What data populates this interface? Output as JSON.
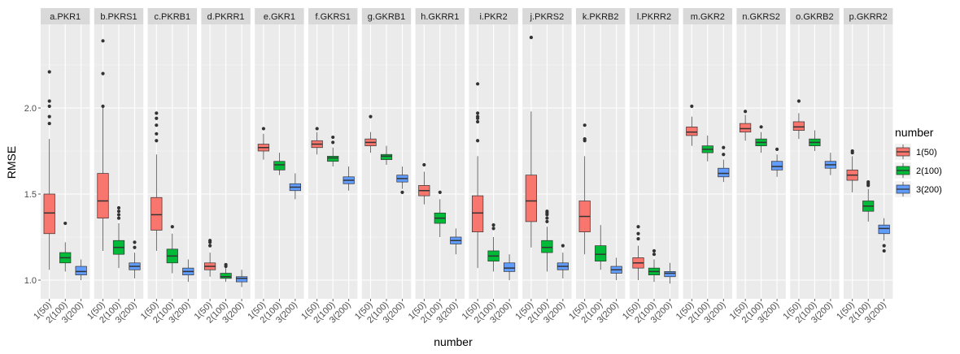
{
  "chart_data": {
    "type": "boxplot",
    "xlabel": "number",
    "ylabel": "RMSE",
    "ylim": [
      0.88,
      2.5
    ],
    "yticks": [
      1.0,
      1.5,
      2.0
    ],
    "ytick_labels": [
      "1.0",
      "1.5",
      "2.0"
    ],
    "categories": [
      "1(50)",
      "2(100)",
      "3(200)"
    ],
    "grid": true,
    "legend": {
      "title": "number",
      "position": "right",
      "entries": [
        {
          "label": "1(50)",
          "color": "#F8766D"
        },
        {
          "label": "2(100)",
          "color": "#00BA38"
        },
        {
          "label": "3(200)",
          "color": "#619CFF"
        }
      ]
    },
    "panels": [
      {
        "title": "a.PKR1",
        "boxes": [
          {
            "q1": 1.27,
            "median": 1.39,
            "q3": 1.5,
            "whisker_low": 1.06,
            "whisker_high": 1.82,
            "outliers": [
              1.91,
              1.95,
              2.01,
              2.04,
              2.21
            ]
          },
          {
            "q1": 1.1,
            "median": 1.13,
            "q3": 1.16,
            "whisker_low": 1.05,
            "whisker_high": 1.22,
            "outliers": [
              1.33
            ]
          },
          {
            "q1": 1.03,
            "median": 1.05,
            "q3": 1.08,
            "whisker_low": 1.0,
            "whisker_high": 1.12,
            "outliers": []
          }
        ]
      },
      {
        "title": "b.PKRS1",
        "boxes": [
          {
            "q1": 1.36,
            "median": 1.46,
            "q3": 1.62,
            "whisker_low": 1.17,
            "whisker_high": 2.0,
            "outliers": [
              2.01,
              2.2,
              2.39
            ]
          },
          {
            "q1": 1.15,
            "median": 1.19,
            "q3": 1.23,
            "whisker_low": 1.07,
            "whisker_high": 1.33,
            "outliers": [
              1.36,
              1.38,
              1.4,
              1.42
            ]
          },
          {
            "q1": 1.06,
            "median": 1.08,
            "q3": 1.1,
            "whisker_low": 1.01,
            "whisker_high": 1.16,
            "outliers": [
              1.19,
              1.22
            ]
          }
        ]
      },
      {
        "title": "c.PKRB1",
        "boxes": [
          {
            "q1": 1.29,
            "median": 1.38,
            "q3": 1.48,
            "whisker_low": 1.17,
            "whisker_high": 1.73,
            "outliers": [
              1.81,
              1.85,
              1.9,
              1.94,
              1.97
            ]
          },
          {
            "q1": 1.1,
            "median": 1.14,
            "q3": 1.18,
            "whisker_low": 1.04,
            "whisker_high": 1.27,
            "outliers": [
              1.31
            ]
          },
          {
            "q1": 1.03,
            "median": 1.05,
            "q3": 1.07,
            "whisker_low": 0.99,
            "whisker_high": 1.12,
            "outliers": []
          }
        ]
      },
      {
        "title": "d.PKRR1",
        "boxes": [
          {
            "q1": 1.06,
            "median": 1.08,
            "q3": 1.1,
            "whisker_low": 1.02,
            "whisker_high": 1.16,
            "outliers": [
              1.2,
              1.22,
              1.23
            ]
          },
          {
            "q1": 1.01,
            "median": 1.02,
            "q3": 1.04,
            "whisker_low": 0.99,
            "whisker_high": 1.07,
            "outliers": [
              1.08,
              1.09
            ]
          },
          {
            "q1": 0.99,
            "median": 1.01,
            "q3": 1.02,
            "whisker_low": 0.96,
            "whisker_high": 1.06,
            "outliers": []
          }
        ]
      },
      {
        "title": "e.GKR1",
        "boxes": [
          {
            "q1": 1.75,
            "median": 1.77,
            "q3": 1.79,
            "whisker_low": 1.7,
            "whisker_high": 1.85,
            "outliers": [
              1.88
            ]
          },
          {
            "q1": 1.64,
            "median": 1.67,
            "q3": 1.69,
            "whisker_low": 1.61,
            "whisker_high": 1.74,
            "outliers": []
          },
          {
            "q1": 1.52,
            "median": 1.54,
            "q3": 1.56,
            "whisker_low": 1.47,
            "whisker_high": 1.62,
            "outliers": []
          }
        ]
      },
      {
        "title": "f.GKRS1",
        "boxes": [
          {
            "q1": 1.77,
            "median": 1.79,
            "q3": 1.81,
            "whisker_low": 1.73,
            "whisker_high": 1.86,
            "outliers": [
              1.88
            ]
          },
          {
            "q1": 1.69,
            "median": 1.71,
            "q3": 1.72,
            "whisker_low": 1.66,
            "whisker_high": 1.77,
            "outliers": [
              1.8,
              1.83
            ]
          },
          {
            "q1": 1.56,
            "median": 1.58,
            "q3": 1.6,
            "whisker_low": 1.52,
            "whisker_high": 1.66,
            "outliers": []
          }
        ]
      },
      {
        "title": "g.GKRB1",
        "boxes": [
          {
            "q1": 1.78,
            "median": 1.8,
            "q3": 1.82,
            "whisker_low": 1.74,
            "whisker_high": 1.86,
            "outliers": [
              1.95
            ]
          },
          {
            "q1": 1.7,
            "median": 1.72,
            "q3": 1.73,
            "whisker_low": 1.67,
            "whisker_high": 1.78,
            "outliers": []
          },
          {
            "q1": 1.57,
            "median": 1.59,
            "q3": 1.61,
            "whisker_low": 1.53,
            "whisker_high": 1.66,
            "outliers": [
              1.51
            ]
          }
        ]
      },
      {
        "title": "h.GKRR1",
        "boxes": [
          {
            "q1": 1.49,
            "median": 1.52,
            "q3": 1.55,
            "whisker_low": 1.44,
            "whisker_high": 1.63,
            "outliers": [
              1.67
            ]
          },
          {
            "q1": 1.33,
            "median": 1.36,
            "q3": 1.39,
            "whisker_low": 1.25,
            "whisker_high": 1.47,
            "outliers": [
              1.51
            ]
          },
          {
            "q1": 1.21,
            "median": 1.23,
            "q3": 1.25,
            "whisker_low": 1.15,
            "whisker_high": 1.3,
            "outliers": []
          }
        ]
      },
      {
        "title": "i.PKR2",
        "boxes": [
          {
            "q1": 1.28,
            "median": 1.39,
            "q3": 1.49,
            "whisker_low": 1.07,
            "whisker_high": 1.72,
            "outliers": [
              1.81,
              1.92,
              1.94,
              1.95,
              1.97,
              2.14
            ]
          },
          {
            "q1": 1.11,
            "median": 1.14,
            "q3": 1.17,
            "whisker_low": 1.05,
            "whisker_high": 1.25,
            "outliers": [
              1.3,
              1.32
            ]
          },
          {
            "q1": 1.05,
            "median": 1.07,
            "q3": 1.1,
            "whisker_low": 1.0,
            "whisker_high": 1.15,
            "outliers": []
          }
        ]
      },
      {
        "title": "j.PKRS2",
        "boxes": [
          {
            "q1": 1.34,
            "median": 1.46,
            "q3": 1.61,
            "whisker_low": 1.19,
            "whisker_high": 1.98,
            "outliers": [
              2.41
            ]
          },
          {
            "q1": 1.16,
            "median": 1.19,
            "q3": 1.23,
            "whisker_low": 1.05,
            "whisker_high": 1.31,
            "outliers": [
              1.34,
              1.36,
              1.38,
              1.39,
              1.4
            ]
          },
          {
            "q1": 1.06,
            "median": 1.08,
            "q3": 1.1,
            "whisker_low": 1.01,
            "whisker_high": 1.16,
            "outliers": [
              1.2
            ]
          }
        ]
      },
      {
        "title": "k.PKRB2",
        "boxes": [
          {
            "q1": 1.28,
            "median": 1.37,
            "q3": 1.46,
            "whisker_low": 1.15,
            "whisker_high": 1.72,
            "outliers": [
              1.81,
              1.82,
              1.9
            ]
          },
          {
            "q1": 1.11,
            "median": 1.15,
            "q3": 1.2,
            "whisker_low": 1.06,
            "whisker_high": 1.32,
            "outliers": []
          },
          {
            "q1": 1.04,
            "median": 1.06,
            "q3": 1.08,
            "whisker_low": 1.0,
            "whisker_high": 1.13,
            "outliers": []
          }
        ]
      },
      {
        "title": "l.PKRR2",
        "boxes": [
          {
            "q1": 1.07,
            "median": 1.1,
            "q3": 1.13,
            "whisker_low": 1.0,
            "whisker_high": 1.2,
            "outliers": [
              1.24,
              1.27,
              1.31
            ]
          },
          {
            "q1": 1.03,
            "median": 1.05,
            "q3": 1.07,
            "whisker_low": 0.99,
            "whisker_high": 1.12,
            "outliers": [
              1.15,
              1.17
            ]
          },
          {
            "q1": 1.02,
            "median": 1.04,
            "q3": 1.05,
            "whisker_low": 0.98,
            "whisker_high": 1.1,
            "outliers": []
          }
        ]
      },
      {
        "title": "m.GKR2",
        "boxes": [
          {
            "q1": 1.84,
            "median": 1.86,
            "q3": 1.89,
            "whisker_low": 1.78,
            "whisker_high": 1.95,
            "outliers": [
              2.01
            ]
          },
          {
            "q1": 1.74,
            "median": 1.76,
            "q3": 1.78,
            "whisker_low": 1.69,
            "whisker_high": 1.84,
            "outliers": []
          },
          {
            "q1": 1.6,
            "median": 1.62,
            "q3": 1.65,
            "whisker_low": 1.57,
            "whisker_high": 1.7,
            "outliers": [
              1.73,
              1.77
            ]
          }
        ]
      },
      {
        "title": "n.GKRS2",
        "boxes": [
          {
            "q1": 1.86,
            "median": 1.88,
            "q3": 1.91,
            "whisker_low": 1.81,
            "whisker_high": 1.96,
            "outliers": [
              1.98
            ]
          },
          {
            "q1": 1.78,
            "median": 1.8,
            "q3": 1.82,
            "whisker_low": 1.74,
            "whisker_high": 1.86,
            "outliers": [
              1.89
            ]
          },
          {
            "q1": 1.64,
            "median": 1.66,
            "q3": 1.69,
            "whisker_low": 1.6,
            "whisker_high": 1.73,
            "outliers": [
              1.76
            ]
          }
        ]
      },
      {
        "title": "o.GKRB2",
        "boxes": [
          {
            "q1": 1.87,
            "median": 1.89,
            "q3": 1.92,
            "whisker_low": 1.82,
            "whisker_high": 1.97,
            "outliers": [
              2.04
            ]
          },
          {
            "q1": 1.78,
            "median": 1.8,
            "q3": 1.82,
            "whisker_low": 1.75,
            "whisker_high": 1.87,
            "outliers": []
          },
          {
            "q1": 1.65,
            "median": 1.67,
            "q3": 1.69,
            "whisker_low": 1.61,
            "whisker_high": 1.74,
            "outliers": []
          }
        ]
      },
      {
        "title": "p.GKRR2",
        "boxes": [
          {
            "q1": 1.58,
            "median": 1.61,
            "q3": 1.64,
            "whisker_low": 1.51,
            "whisker_high": 1.72,
            "outliers": [
              1.74,
              1.75
            ]
          },
          {
            "q1": 1.4,
            "median": 1.43,
            "q3": 1.46,
            "whisker_low": 1.34,
            "whisker_high": 1.53,
            "outliers": [
              1.55,
              1.56,
              1.57
            ]
          },
          {
            "q1": 1.27,
            "median": 1.3,
            "q3": 1.32,
            "whisker_low": 1.23,
            "whisker_high": 1.36,
            "outliers": [
              1.17,
              1.2
            ]
          }
        ]
      }
    ]
  }
}
